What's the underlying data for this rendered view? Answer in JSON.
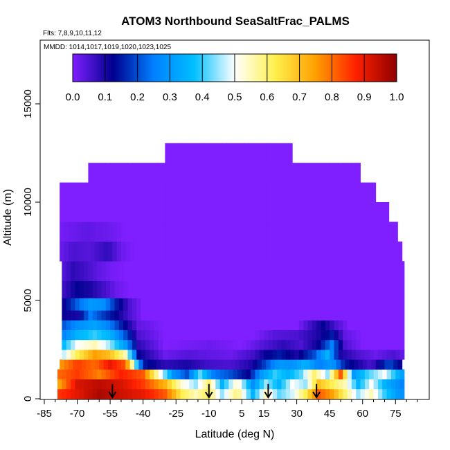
{
  "chart_data": {
    "type": "heatmap",
    "title": "ATOM3 Northbound SeaSaltFrac_PALMS",
    "subtitle_flights": "Flts: 7,8,9,10,11,12",
    "subtitle_dates": "MMDD: 1014,1017,1019,1020,1023,1025",
    "xlabel": "Latitude (deg N)",
    "ylabel": "Altitude (m)",
    "xlim": [
      -85,
      85
    ],
    "ylim": [
      0,
      17500
    ],
    "xticks": [
      "-85",
      "-70",
      "-55",
      "-40",
      "-25",
      "-10",
      "5",
      "15",
      "30",
      "45",
      "60",
      "75"
    ],
    "xtick_values": [
      -85,
      -70,
      -55,
      -40,
      -25,
      -10,
      5,
      15,
      30,
      45,
      60,
      75
    ],
    "yticks": [
      "0",
      "5000",
      "10000",
      "15000"
    ],
    "ytick_values": [
      0,
      5000,
      10000,
      15000
    ],
    "colorbar": {
      "range": [
        0.0,
        1.0
      ],
      "tick_labels": [
        "0.0",
        "0.1",
        "0.2",
        "0.3",
        "0.4",
        "0.5",
        "0.6",
        "0.7",
        "0.8",
        "0.9",
        "1.0"
      ],
      "colors": [
        "#7f1fff",
        "#00008f",
        "#0080ff",
        "#00bfff",
        "#ffffff",
        "#fff04d",
        "#ff9f00",
        "#ff2000",
        "#8f0000"
      ]
    },
    "arrows_latitude": [
      -54,
      -10,
      17,
      39
    ],
    "altitude_levels_m": [
      250,
      750,
      1250,
      1750,
      2250,
      2750,
      3250,
      3750,
      4250,
      4750,
      5500,
      6500,
      7500,
      8500,
      9500,
      10500,
      11500,
      12500
    ],
    "levels": [
      {
        "alt": 250,
        "lat": [
          -79,
          79
        ],
        "v": [
          [
            -79,
            0.85
          ],
          [
            -60,
            0.97
          ],
          [
            -50,
            0.93
          ],
          [
            -40,
            0.9
          ],
          [
            -30,
            0.82
          ],
          [
            -22,
            0.62
          ],
          [
            -16,
            0.55
          ],
          [
            -10,
            0.62
          ],
          [
            -4,
            0.45
          ],
          [
            3,
            0.6
          ],
          [
            10,
            0.35
          ],
          [
            16,
            0.55
          ],
          [
            22,
            0.42
          ],
          [
            28,
            0.48
          ],
          [
            34,
            0.62
          ],
          [
            40,
            0.82
          ],
          [
            46,
            0.75
          ],
          [
            52,
            0.6
          ],
          [
            58,
            0.45
          ],
          [
            64,
            0.55
          ],
          [
            70,
            0.4
          ],
          [
            76,
            0.3
          ],
          [
            79,
            0.28
          ]
        ]
      },
      {
        "alt": 750,
        "lat": [
          -79,
          79
        ],
        "v": [
          [
            -79,
            0.72
          ],
          [
            -70,
            0.92
          ],
          [
            -60,
            0.95
          ],
          [
            -50,
            0.92
          ],
          [
            -40,
            0.85
          ],
          [
            -30,
            0.72
          ],
          [
            -22,
            0.52
          ],
          [
            -16,
            0.45
          ],
          [
            -10,
            0.6
          ],
          [
            -4,
            0.35
          ],
          [
            3,
            0.55
          ],
          [
            10,
            0.28
          ],
          [
            16,
            0.45
          ],
          [
            22,
            0.35
          ],
          [
            28,
            0.5
          ],
          [
            34,
            0.45
          ],
          [
            40,
            0.7
          ],
          [
            46,
            0.62
          ],
          [
            52,
            0.55
          ],
          [
            58,
            0.35
          ],
          [
            64,
            0.5
          ],
          [
            70,
            0.35
          ],
          [
            76,
            0.28
          ],
          [
            79,
            0.25
          ]
        ]
      },
      {
        "alt": 1250,
        "lat": [
          -79,
          79
        ],
        "v": [
          [
            -79,
            0.8
          ],
          [
            -70,
            0.85
          ],
          [
            -60,
            0.78
          ],
          [
            -50,
            0.88
          ],
          [
            -40,
            0.82
          ],
          [
            -32,
            0.5
          ],
          [
            -26,
            0.28
          ],
          [
            -20,
            0.2
          ],
          [
            -14,
            0.42
          ],
          [
            -8,
            0.25
          ],
          [
            0,
            0.2
          ],
          [
            8,
            0.12
          ],
          [
            14,
            0.3
          ],
          [
            20,
            0.4
          ],
          [
            26,
            0.35
          ],
          [
            32,
            0.42
          ],
          [
            38,
            0.6
          ],
          [
            44,
            0.45
          ],
          [
            50,
            0.82
          ],
          [
            56,
            0.3
          ],
          [
            62,
            0.4
          ],
          [
            70,
            0.5
          ],
          [
            76,
            0.35
          ],
          [
            79,
            0.3
          ]
        ]
      },
      {
        "alt": 1750,
        "lat": [
          -78,
          78
        ],
        "v": [
          [
            -78,
            0.75
          ],
          [
            -70,
            0.85
          ],
          [
            -62,
            0.8
          ],
          [
            -55,
            0.9
          ],
          [
            -48,
            0.82
          ],
          [
            -40,
            0.15
          ],
          [
            -30,
            0.08
          ],
          [
            -20,
            0.1
          ],
          [
            -10,
            0.06
          ],
          [
            0,
            0.05
          ],
          [
            10,
            0.1
          ],
          [
            16,
            0.2
          ],
          [
            22,
            0.3
          ],
          [
            28,
            0.28
          ],
          [
            34,
            0.35
          ],
          [
            40,
            0.25
          ],
          [
            46,
            0.3
          ],
          [
            52,
            0.15
          ],
          [
            58,
            0.1
          ],
          [
            64,
            0.05
          ],
          [
            72,
            0.2
          ],
          [
            78,
            0.1
          ]
        ]
      },
      {
        "alt": 2250,
        "lat": [
          -77,
          78
        ],
        "v": [
          [
            -77,
            0.45
          ],
          [
            -70,
            0.62
          ],
          [
            -62,
            0.75
          ],
          [
            -55,
            0.7
          ],
          [
            -48,
            0.55
          ],
          [
            -42,
            0.12
          ],
          [
            -30,
            0.02
          ],
          [
            -20,
            0.04
          ],
          [
            -10,
            0.03
          ],
          [
            0,
            0.02
          ],
          [
            10,
            0.06
          ],
          [
            16,
            0.12
          ],
          [
            22,
            0.15
          ],
          [
            30,
            0.1
          ],
          [
            38,
            0.2
          ],
          [
            44,
            0.35
          ],
          [
            50,
            0.1
          ],
          [
            58,
            0.05
          ],
          [
            66,
            0.02
          ],
          [
            74,
            0.05
          ],
          [
            78,
            0.03
          ]
        ]
      },
      {
        "alt": 2750,
        "lat": [
          -77,
          78
        ],
        "v": [
          [
            -77,
            0.35
          ],
          [
            -70,
            0.5
          ],
          [
            -62,
            0.55
          ],
          [
            -55,
            0.45
          ],
          [
            -48,
            0.3
          ],
          [
            -42,
            0.08
          ],
          [
            -30,
            0.0
          ],
          [
            -10,
            0.02
          ],
          [
            5,
            0.0
          ],
          [
            16,
            0.05
          ],
          [
            24,
            0.08
          ],
          [
            32,
            0.05
          ],
          [
            40,
            0.12
          ],
          [
            46,
            0.25
          ],
          [
            52,
            0.05
          ],
          [
            60,
            0.0
          ],
          [
            78,
            0.0
          ]
        ]
      },
      {
        "alt": 3250,
        "lat": [
          -77,
          78
        ],
        "v": [
          [
            -77,
            0.25
          ],
          [
            -70,
            0.35
          ],
          [
            -62,
            0.4
          ],
          [
            -55,
            0.35
          ],
          [
            -48,
            0.2
          ],
          [
            -42,
            0.05
          ],
          [
            -30,
            0.0
          ],
          [
            10,
            0.0
          ],
          [
            20,
            0.04
          ],
          [
            30,
            0.05
          ],
          [
            40,
            0.1
          ],
          [
            46,
            0.15
          ],
          [
            52,
            0.03
          ],
          [
            60,
            0.0
          ],
          [
            78,
            0.0
          ]
        ]
      },
      {
        "alt": 3750,
        "lat": [
          -77,
          78
        ],
        "v": [
          [
            -77,
            0.2
          ],
          [
            -70,
            0.28
          ],
          [
            -62,
            0.32
          ],
          [
            -55,
            0.25
          ],
          [
            -48,
            0.12
          ],
          [
            -42,
            0.03
          ],
          [
            -30,
            0.0
          ],
          [
            30,
            0.0
          ],
          [
            36,
            0.06
          ],
          [
            42,
            0.12
          ],
          [
            48,
            0.05
          ],
          [
            54,
            0.0
          ],
          [
            78,
            0.0
          ]
        ]
      },
      {
        "alt": 4250,
        "lat": [
          -77,
          78
        ],
        "v": [
          [
            -77,
            0.12
          ],
          [
            -70,
            0.1
          ],
          [
            -64,
            0.25
          ],
          [
            -58,
            0.18
          ],
          [
            -52,
            0.12
          ],
          [
            -46,
            0.05
          ],
          [
            -40,
            0.0
          ],
          [
            78,
            0.0
          ]
        ]
      },
      {
        "alt": 4750,
        "lat": [
          -77,
          78
        ],
        "v": [
          [
            -77,
            0.1
          ],
          [
            -70,
            0.22
          ],
          [
            -64,
            0.3
          ],
          [
            -58,
            0.28
          ],
          [
            -52,
            0.15
          ],
          [
            -46,
            0.05
          ],
          [
            -40,
            0.0
          ],
          [
            78,
            0.0
          ]
        ]
      },
      {
        "alt": 5500,
        "lat": [
          -77,
          78
        ],
        "v": [
          [
            -77,
            0.06
          ],
          [
            -70,
            0.12
          ],
          [
            -64,
            0.1
          ],
          [
            -58,
            0.06
          ],
          [
            -52,
            0.02
          ],
          [
            -46,
            0.0
          ],
          [
            78,
            0.0
          ]
        ]
      },
      {
        "alt": 6500,
        "lat": [
          -77,
          78
        ],
        "v": [
          [
            -77,
            0.04
          ],
          [
            -72,
            0.08
          ],
          [
            -66,
            0.06
          ],
          [
            -60,
            0.03
          ],
          [
            -54,
            0.01
          ],
          [
            -48,
            0.0
          ],
          [
            78,
            0.0
          ]
        ]
      },
      {
        "alt": 7500,
        "lat": [
          -78,
          78
        ],
        "v": [
          [
            -78,
            0.02
          ],
          [
            -72,
            0.05
          ],
          [
            -64,
            0.04
          ],
          [
            -56,
            0.08
          ],
          [
            -50,
            0.02
          ],
          [
            -44,
            0.0
          ],
          [
            78,
            0.0
          ]
        ]
      },
      {
        "alt": 8500,
        "lat": [
          -78,
          76
        ],
        "v": [
          [
            -78,
            0.01
          ],
          [
            -66,
            0.03
          ],
          [
            -56,
            0.02
          ],
          [
            -48,
            0.0
          ],
          [
            76,
            0.0
          ]
        ]
      },
      {
        "alt": 9500,
        "lat": [
          -78,
          72
        ],
        "v": [
          [
            -78,
            0.0
          ],
          [
            72,
            0.0
          ]
        ]
      },
      {
        "alt": 10500,
        "lat": [
          -78,
          65
        ],
        "v": [
          [
            -78,
            0.0
          ],
          [
            65,
            0.0
          ]
        ]
      },
      {
        "alt": 11500,
        "lat": [
          -65,
          58
        ],
        "v": [
          [
            -65,
            0.0
          ],
          [
            58,
            0.0
          ]
        ]
      },
      {
        "alt": 12500,
        "lat": [
          -30,
          27
        ],
        "v": [
          [
            -30,
            0.0
          ],
          [
            27,
            0.0
          ]
        ]
      }
    ]
  }
}
